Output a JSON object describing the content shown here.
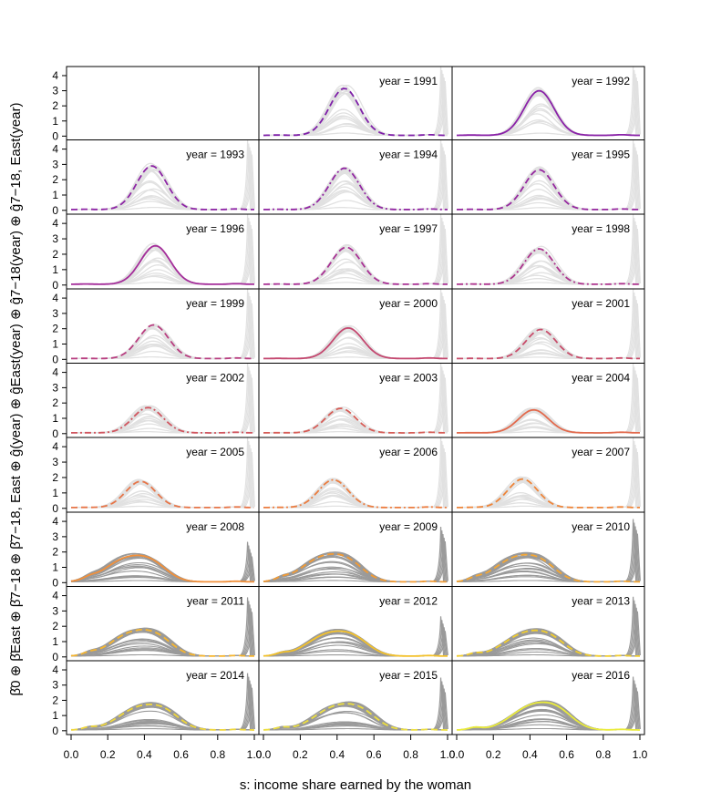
{
  "chart_data": {
    "type": "line",
    "xlabel": "s: income share earned by the woman",
    "ylabel": "β̂0 ⊕ β̂East ⊕ β̂7−18 ⊕ β̂7−18, East ⊕ ĝ(year) ⊕ ĝEast(year) ⊕ ĝ7−18(year) ⊕ ĝ7−18, East(year)",
    "xlim": [
      0,
      1
    ],
    "ylim": [
      0,
      4.6
    ],
    "x_ticks": [
      "0.0",
      "0.2",
      "0.4",
      "0.6",
      "0.8",
      "1.0"
    ],
    "y_ticks": [
      "0",
      "1",
      "2",
      "3",
      "4"
    ],
    "grid": false,
    "band_colors": {
      "light": "#e1e1e1",
      "dark": "#9a9a9a"
    },
    "panels": [
      {
        "label": "",
        "year": null,
        "color": "",
        "style": "none",
        "peak": 0,
        "ctr": 0.45,
        "band": "none"
      },
      {
        "label": "year = 1991",
        "year": 1991,
        "color": "#7e1fa8",
        "style": "dashed",
        "peak": 3.1,
        "ctr": 0.44,
        "band": "light"
      },
      {
        "label": "year = 1992",
        "year": 1992,
        "color": "#8a22a8",
        "style": "solid",
        "peak": 2.95,
        "ctr": 0.45,
        "band": "light"
      },
      {
        "label": "year = 1993",
        "year": 1993,
        "color": "#8d24a5",
        "style": "dashed",
        "peak": 2.85,
        "ctr": 0.44,
        "band": "light"
      },
      {
        "label": "year = 1994",
        "year": 1994,
        "color": "#9126a2",
        "style": "dashdot",
        "peak": 2.7,
        "ctr": 0.44,
        "band": "light"
      },
      {
        "label": "year = 1995",
        "year": 1995,
        "color": "#95289f",
        "style": "dashed",
        "peak": 2.6,
        "ctr": 0.45,
        "band": "light"
      },
      {
        "label": "year = 1996",
        "year": 1996,
        "color": "#a42d9a",
        "style": "solid",
        "peak": 2.5,
        "ctr": 0.46,
        "band": "light"
      },
      {
        "label": "year = 1997",
        "year": 1997,
        "color": "#a83094",
        "style": "dashed",
        "peak": 2.4,
        "ctr": 0.45,
        "band": "light"
      },
      {
        "label": "year = 1998",
        "year": 1998,
        "color": "#ad358e",
        "style": "dashdot",
        "peak": 2.3,
        "ctr": 0.45,
        "band": "light"
      },
      {
        "label": "year = 1999",
        "year": 1999,
        "color": "#b83e80",
        "style": "dashed",
        "peak": 2.2,
        "ctr": 0.45,
        "band": "light"
      },
      {
        "label": "year = 2000",
        "year": 2000,
        "color": "#c4476f",
        "style": "solid",
        "peak": 2.0,
        "ctr": 0.46,
        "band": "light"
      },
      {
        "label": "year = 2001",
        "year": 2001,
        "color": "#c84c6a",
        "style": "dashed",
        "peak": 1.9,
        "ctr": 0.46,
        "band": "light"
      },
      {
        "label": "year = 2002",
        "year": 2002,
        "color": "#d0555f",
        "style": "dashdot",
        "peak": 1.65,
        "ctr": 0.42,
        "band": "light"
      },
      {
        "label": "year = 2003",
        "year": 2003,
        "color": "#d65c56",
        "style": "dashed",
        "peak": 1.6,
        "ctr": 0.42,
        "band": "light"
      },
      {
        "label": "year = 2004",
        "year": 2004,
        "color": "#e26a4d",
        "style": "solid",
        "peak": 1.5,
        "ctr": 0.42,
        "band": "light"
      },
      {
        "label": "year = 2005",
        "year": 2005,
        "color": "#e67548",
        "style": "dashed",
        "peak": 1.7,
        "ctr": 0.38,
        "band": "light"
      },
      {
        "label": "year = 2006",
        "year": 2006,
        "color": "#eb7d40",
        "style": "dashdot",
        "peak": 1.8,
        "ctr": 0.38,
        "band": "light"
      },
      {
        "label": "year = 2007",
        "year": 2007,
        "color": "#ee853a",
        "style": "dashed",
        "peak": 1.85,
        "ctr": 0.36,
        "band": "light"
      },
      {
        "label": "year = 2008",
        "year": 2008,
        "color": "#f2903a",
        "style": "solid",
        "peak": 1.85,
        "ctr": 0.35,
        "band": "dark"
      },
      {
        "label": "year = 2009",
        "year": 2009,
        "color": "#f39b34",
        "style": "dashed",
        "peak": 1.95,
        "ctr": 0.37,
        "band": "dark"
      },
      {
        "label": "year = 2010",
        "year": 2010,
        "color": "#f5a733",
        "style": "dashed",
        "peak": 1.9,
        "ctr": 0.37,
        "band": "dark"
      },
      {
        "label": "year = 2011",
        "year": 2011,
        "color": "#f6b52f",
        "style": "dashed",
        "peak": 1.85,
        "ctr": 0.38,
        "band": "dark"
      },
      {
        "label": "year = 2012",
        "year": 2012,
        "color": "#f3c12b",
        "style": "solid",
        "peak": 1.75,
        "ctr": 0.4,
        "band": "dark"
      },
      {
        "label": "year = 2013",
        "year": 2013,
        "color": "#f1cd2d",
        "style": "dashed",
        "peak": 1.8,
        "ctr": 0.42,
        "band": "dark"
      },
      {
        "label": "year = 2014",
        "year": 2014,
        "color": "#efd63a",
        "style": "dashed",
        "peak": 1.8,
        "ctr": 0.42,
        "band": "dark"
      },
      {
        "label": "year = 2015",
        "year": 2015,
        "color": "#ecde3f",
        "style": "dashed",
        "peak": 1.85,
        "ctr": 0.44,
        "band": "dark"
      },
      {
        "label": "year = 2016",
        "year": 2016,
        "color": "#eaeb3a",
        "style": "solid",
        "peak": 1.95,
        "ctr": 0.46,
        "band": "dark"
      }
    ]
  }
}
